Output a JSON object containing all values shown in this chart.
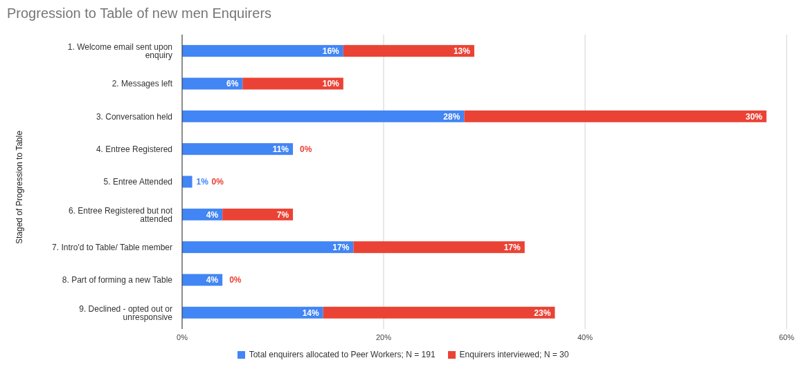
{
  "chart_data": {
    "type": "bar",
    "orientation": "horizontal",
    "stacked": true,
    "title": "Progression to Table of new men Enquirers",
    "ylabel": "Staged of Progression to Table",
    "categories": [
      "1. Welcome email sent upon enquiry",
      "2. Messages left",
      "3. Conversation held",
      "4. Entree Registered",
      "5. Entree Attended",
      "6. Entree Registered but not attended",
      "7. Intro'd to Table/ Table member",
      "8. Part of forming a new Table",
      "9. Declined - opted out or unresponsive"
    ],
    "series": [
      {
        "name": "Total enquirers allocated to Peer Workers; N = 191",
        "color": "#4285f4",
        "values": [
          16,
          6,
          28,
          11,
          1,
          4,
          17,
          4,
          14
        ],
        "value_labels": [
          "16%",
          "6%",
          "28%",
          "11%",
          "1%",
          "4%",
          "17%",
          "4%",
          "14%"
        ]
      },
      {
        "name": "Enquirers interviewed; N = 30",
        "color": "#ea4335",
        "values": [
          13,
          10,
          30,
          0,
          0,
          7,
          17,
          0,
          23
        ],
        "value_labels": [
          "13%",
          "10%",
          "30%",
          "0%",
          "0%",
          "7%",
          "17%",
          "0%",
          "23%"
        ]
      }
    ],
    "xlim": [
      0,
      60
    ],
    "xticks": [
      {
        "value": 0,
        "label": "0%"
      },
      {
        "value": 20,
        "label": "20%"
      },
      {
        "value": 40,
        "label": "40%"
      },
      {
        "value": 60,
        "label": "60%"
      }
    ],
    "grid": "x",
    "legend": "bottom"
  }
}
